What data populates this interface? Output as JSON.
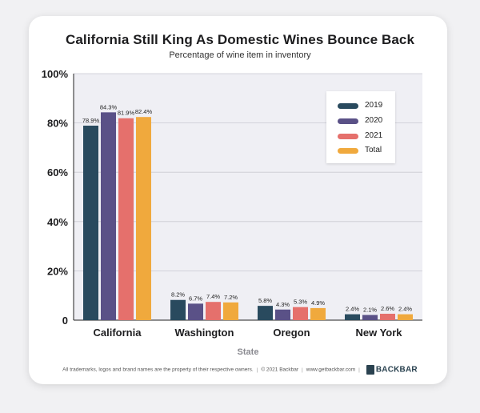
{
  "footer": {
    "trademark": "All trademarks, logos and brand names are the property of their respective owners.",
    "copyright": "© 2021 Backbar",
    "url": "www.getbackbar.com",
    "brand": "BACKBAR"
  },
  "colors": {
    "2019": "#294a5e",
    "2020": "#5a5187",
    "2021": "#e5706c",
    "Total": "#f0a93d",
    "plot_bg": "#efeff4",
    "grid": "#ffffff"
  },
  "chart_data": {
    "type": "bar",
    "title": "California Still King As Domestic Wines Bounce Back",
    "subtitle": "Percentage of wine item in inventory",
    "xlabel": "State",
    "ylabel": "",
    "ylim": [
      0,
      100
    ],
    "yticks": [
      "0",
      "20%",
      "40%",
      "60%",
      "80%",
      "100%"
    ],
    "ytick_values": [
      0,
      20,
      40,
      60,
      80,
      100
    ],
    "categories": [
      "California",
      "Washington",
      "Oregon",
      "New York"
    ],
    "series": [
      {
        "name": "2019",
        "values": [
          78.9,
          8.2,
          5.8,
          2.4
        ],
        "labels": [
          "78.9%",
          "8.2%",
          "5.8%",
          "2.4%"
        ]
      },
      {
        "name": "2020",
        "values": [
          84.3,
          6.7,
          4.3,
          2.1
        ],
        "labels": [
          "84.3%",
          "6.7%",
          "4.3%",
          "2.1%"
        ]
      },
      {
        "name": "2021",
        "values": [
          81.9,
          7.4,
          5.3,
          2.6
        ],
        "labels": [
          "81.9%",
          "7.4%",
          "5.3%",
          "2.6%"
        ]
      },
      {
        "name": "Total",
        "values": [
          82.4,
          7.2,
          4.9,
          2.4
        ],
        "labels": [
          "82.4%",
          "7.2%",
          "4.9%",
          "2.4%"
        ]
      }
    ],
    "legend_position": "top-right",
    "grid": true
  }
}
